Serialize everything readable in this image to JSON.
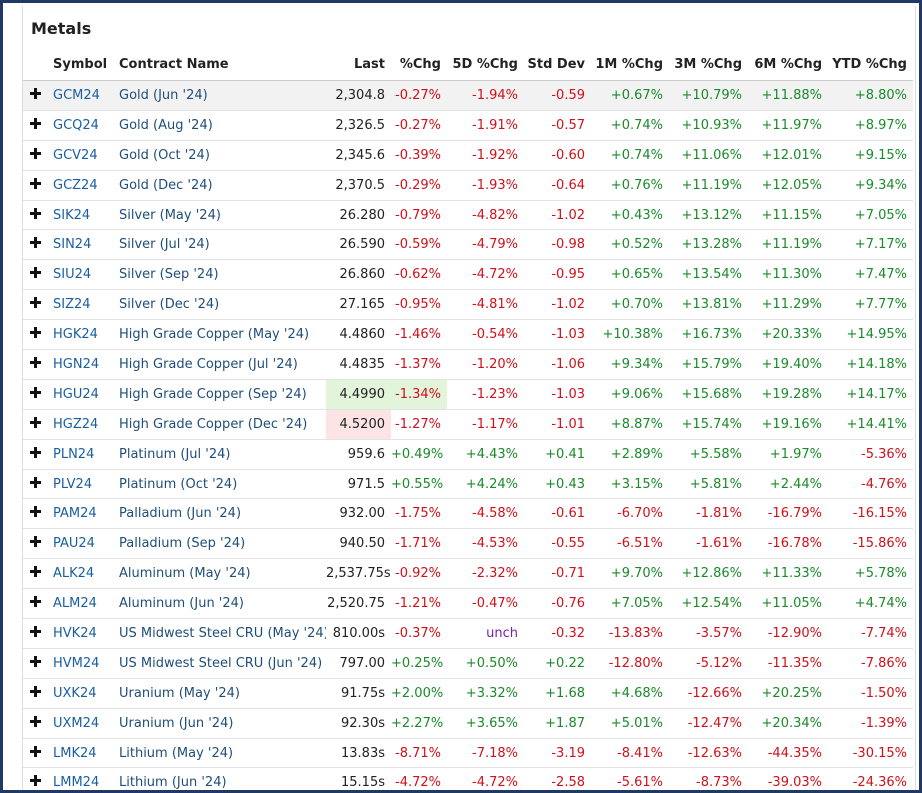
{
  "header": {
    "title": "Metals"
  },
  "table": {
    "columns": [
      "Symbol",
      "Contract Name",
      "Last",
      "%Chg",
      "5D %Chg",
      "Std Dev",
      "1M %Chg",
      "3M %Chg",
      "6M %Chg",
      "YTD %Chg"
    ],
    "rows": [
      [
        "GCM24",
        "Gold (Jun '24)",
        "2,304.8",
        "-0.27%",
        "-1.94%",
        "-0.59",
        "+0.67%",
        "+10.79%",
        "+11.88%",
        "+8.80%"
      ],
      [
        "GCQ24",
        "Gold (Aug '24)",
        "2,326.5",
        "-0.27%",
        "-1.91%",
        "-0.57",
        "+0.74%",
        "+10.93%",
        "+11.97%",
        "+8.97%"
      ],
      [
        "GCV24",
        "Gold (Oct '24)",
        "2,345.6",
        "-0.39%",
        "-1.92%",
        "-0.60",
        "+0.74%",
        "+11.06%",
        "+12.01%",
        "+9.15%"
      ],
      [
        "GCZ24",
        "Gold (Dec '24)",
        "2,370.5",
        "-0.29%",
        "-1.93%",
        "-0.64",
        "+0.76%",
        "+11.19%",
        "+12.05%",
        "+9.34%"
      ],
      [
        "SIK24",
        "Silver (May '24)",
        "26.280",
        "-0.79%",
        "-4.82%",
        "-1.02",
        "+0.43%",
        "+13.12%",
        "+11.15%",
        "+7.05%"
      ],
      [
        "SIN24",
        "Silver (Jul '24)",
        "26.590",
        "-0.59%",
        "-4.79%",
        "-0.98",
        "+0.52%",
        "+13.28%",
        "+11.19%",
        "+7.17%"
      ],
      [
        "SIU24",
        "Silver (Sep '24)",
        "26.860",
        "-0.62%",
        "-4.72%",
        "-0.95",
        "+0.65%",
        "+13.54%",
        "+11.30%",
        "+7.47%"
      ],
      [
        "SIZ24",
        "Silver (Dec '24)",
        "27.165",
        "-0.95%",
        "-4.81%",
        "-1.02",
        "+0.70%",
        "+13.81%",
        "+11.29%",
        "+7.77%"
      ],
      [
        "HGK24",
        "High Grade Copper (May '24)",
        "4.4860",
        "-1.46%",
        "-0.54%",
        "-1.03",
        "+10.38%",
        "+16.73%",
        "+20.33%",
        "+14.95%"
      ],
      [
        "HGN24",
        "High Grade Copper (Jul '24)",
        "4.4835",
        "-1.37%",
        "-1.20%",
        "-1.06",
        "+9.34%",
        "+15.79%",
        "+19.40%",
        "+14.18%"
      ],
      [
        "HGU24",
        "High Grade Copper (Sep '24)",
        "4.4990",
        "-1.34%",
        "-1.23%",
        "-1.03",
        "+9.06%",
        "+15.68%",
        "+19.28%",
        "+14.17%"
      ],
      [
        "HGZ24",
        "High Grade Copper (Dec '24)",
        "4.5200",
        "-1.27%",
        "-1.17%",
        "-1.01",
        "+8.87%",
        "+15.74%",
        "+19.16%",
        "+14.41%"
      ],
      [
        "PLN24",
        "Platinum (Jul '24)",
        "959.6",
        "+0.49%",
        "+4.43%",
        "+0.41",
        "+2.89%",
        "+5.58%",
        "+1.97%",
        "-5.36%"
      ],
      [
        "PLV24",
        "Platinum (Oct '24)",
        "971.5",
        "+0.55%",
        "+4.24%",
        "+0.43",
        "+3.15%",
        "+5.81%",
        "+2.44%",
        "-4.76%"
      ],
      [
        "PAM24",
        "Palladium (Jun '24)",
        "932.00",
        "-1.75%",
        "-4.58%",
        "-0.61",
        "-6.70%",
        "-1.81%",
        "-16.79%",
        "-16.15%"
      ],
      [
        "PAU24",
        "Palladium (Sep '24)",
        "940.50",
        "-1.71%",
        "-4.53%",
        "-0.55",
        "-6.51%",
        "-1.61%",
        "-16.78%",
        "-15.86%"
      ],
      [
        "ALK24",
        "Aluminum (May '24)",
        "2,537.75s",
        "-0.92%",
        "-2.32%",
        "-0.71",
        "+9.70%",
        "+12.86%",
        "+11.33%",
        "+5.78%"
      ],
      [
        "ALM24",
        "Aluminum (Jun '24)",
        "2,520.75",
        "-1.21%",
        "-0.47%",
        "-0.76",
        "+7.05%",
        "+12.54%",
        "+11.05%",
        "+4.74%"
      ],
      [
        "HVK24",
        "US Midwest Steel CRU (May '24)",
        "810.00s",
        "-0.37%",
        "unch",
        "-0.32",
        "-13.83%",
        "-3.57%",
        "-12.90%",
        "-7.74%"
      ],
      [
        "HVM24",
        "US Midwest Steel CRU (Jun '24)",
        "797.00",
        "+0.25%",
        "+0.50%",
        "+0.22",
        "-12.80%",
        "-5.12%",
        "-11.35%",
        "-7.86%"
      ],
      [
        "UXK24",
        "Uranium (May '24)",
        "91.75s",
        "+2.00%",
        "+3.32%",
        "+1.68",
        "+4.68%",
        "-12.66%",
        "+20.25%",
        "-1.50%"
      ],
      [
        "UXM24",
        "Uranium (Jun '24)",
        "92.30s",
        "+2.27%",
        "+3.65%",
        "+1.87",
        "+5.01%",
        "-12.47%",
        "+20.34%",
        "-1.39%"
      ],
      [
        "LMK24",
        "Lithium (May '24)",
        "13.83s",
        "-8.71%",
        "-7.18%",
        "-3.19",
        "-8.41%",
        "-12.63%",
        "-44.35%",
        "-30.15%"
      ],
      [
        "LMM24",
        "Lithium (Jun '24)",
        "15.15s",
        "-4.72%",
        "-4.72%",
        "-2.58",
        "-5.61%",
        "-8.73%",
        "-39.03%",
        "-24.36%"
      ]
    ]
  }
}
